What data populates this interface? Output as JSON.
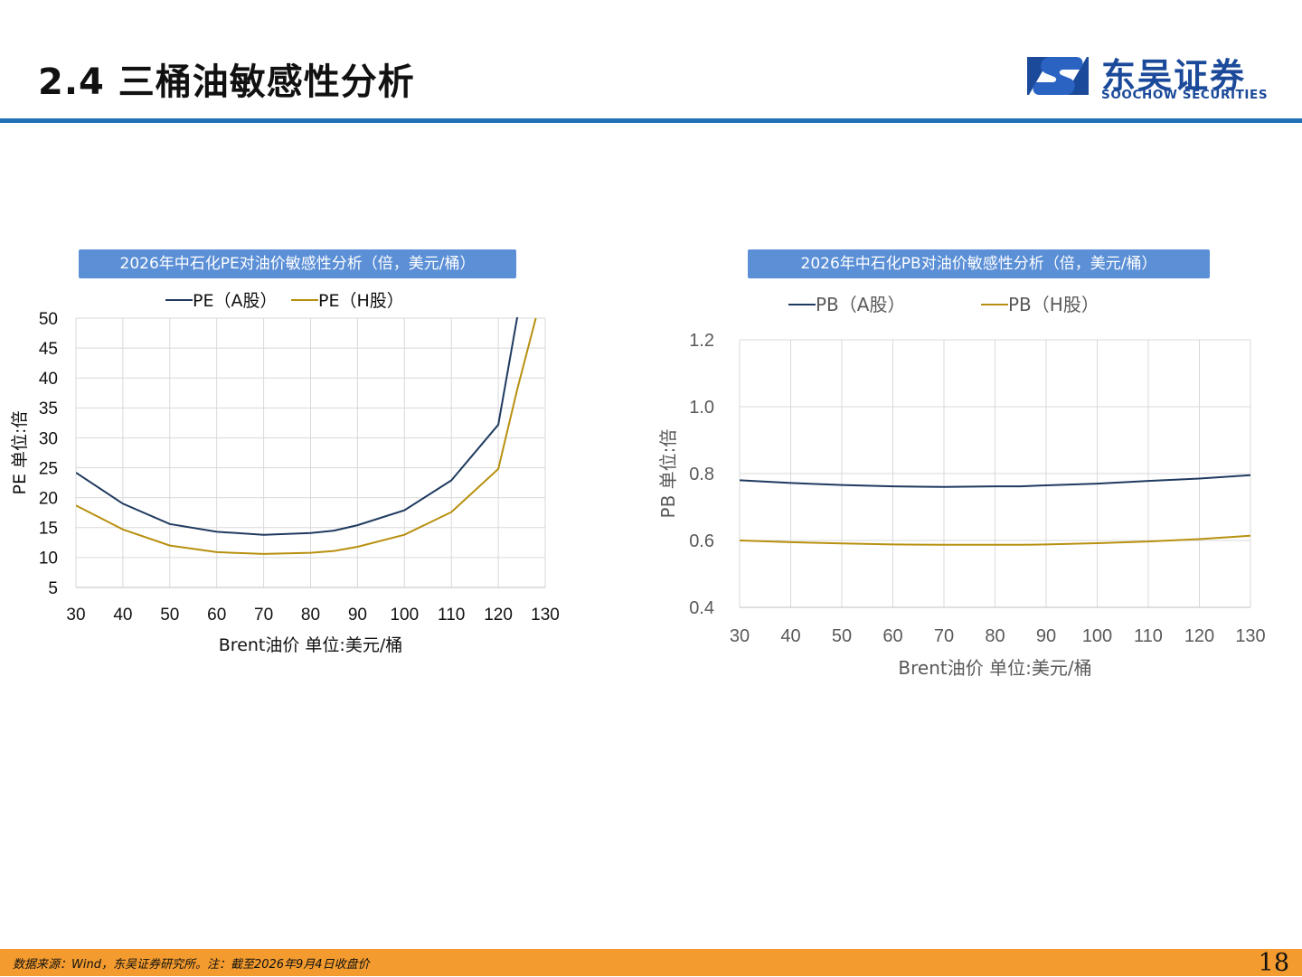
{
  "header": {
    "title": "2.4 三桶油敏感性分析"
  },
  "logo": {
    "name_cn": "东吴证券",
    "name_en": "SOOCHOW SECURITIES"
  },
  "footer": {
    "source": "数据来源：Wind，东吴证券研究所。注：截至2026年9月4日收盘价",
    "page": "18"
  },
  "colors": {
    "series_a": "#1f3a5f",
    "series_h": "#b8900f",
    "banner": "#5b8fd6",
    "rule": "#1f6fb5",
    "footer": "#f39b2e"
  },
  "chart_data": [
    {
      "type": "line",
      "title": "2026年中石化PE对油价敏感性分析（倍，美元/桶）",
      "xlabel": "Brent油价  单位:美元/桶",
      "ylabel": "PE  单位:倍",
      "x": [
        30,
        40,
        50,
        60,
        70,
        80,
        85,
        90,
        100,
        110,
        120,
        124,
        128
      ],
      "xticks": [
        30,
        40,
        50,
        60,
        70,
        80,
        90,
        100,
        110,
        120,
        130
      ],
      "yticks": [
        5,
        10,
        15,
        20,
        25,
        30,
        35,
        40,
        45,
        50
      ],
      "xlim": [
        30,
        130
      ],
      "ylim": [
        5,
        50
      ],
      "grid": true,
      "legend": "top",
      "series": [
        {
          "name": "PE（A股）",
          "values": [
            24.2,
            19.0,
            15.6,
            14.3,
            13.8,
            14.1,
            14.5,
            15.4,
            17.9,
            22.9,
            32.2,
            50,
            60
          ]
        },
        {
          "name": "PE（H股）",
          "values": [
            18.7,
            14.7,
            12.0,
            10.9,
            10.6,
            10.8,
            11.1,
            11.8,
            13.8,
            17.6,
            24.8,
            38,
            50
          ]
        }
      ]
    },
    {
      "type": "line",
      "title": "2026年中石化PB对油价敏感性分析（倍，美元/桶）",
      "xlabel": "Brent油价  单位:美元/桶",
      "ylabel": "PB  单位:倍",
      "x": [
        30,
        40,
        50,
        60,
        70,
        80,
        85,
        90,
        100,
        110,
        120,
        130
      ],
      "xticks": [
        30,
        40,
        50,
        60,
        70,
        80,
        90,
        100,
        110,
        120,
        130
      ],
      "yticks": [
        "0.4",
        "0.6",
        "0.8",
        "1.0",
        "1.2"
      ],
      "xlim": [
        30,
        130
      ],
      "ylim": [
        0.4,
        1.2
      ],
      "grid": true,
      "legend": "top",
      "series": [
        {
          "name": "PB（A股）",
          "values": [
            0.78,
            0.772,
            0.766,
            0.762,
            0.76,
            0.762,
            0.762,
            0.765,
            0.77,
            0.778,
            0.785,
            0.795
          ]
        },
        {
          "name": "PB（H股）",
          "values": [
            0.6,
            0.595,
            0.591,
            0.588,
            0.587,
            0.587,
            0.587,
            0.588,
            0.592,
            0.597,
            0.604,
            0.614
          ]
        }
      ]
    }
  ]
}
